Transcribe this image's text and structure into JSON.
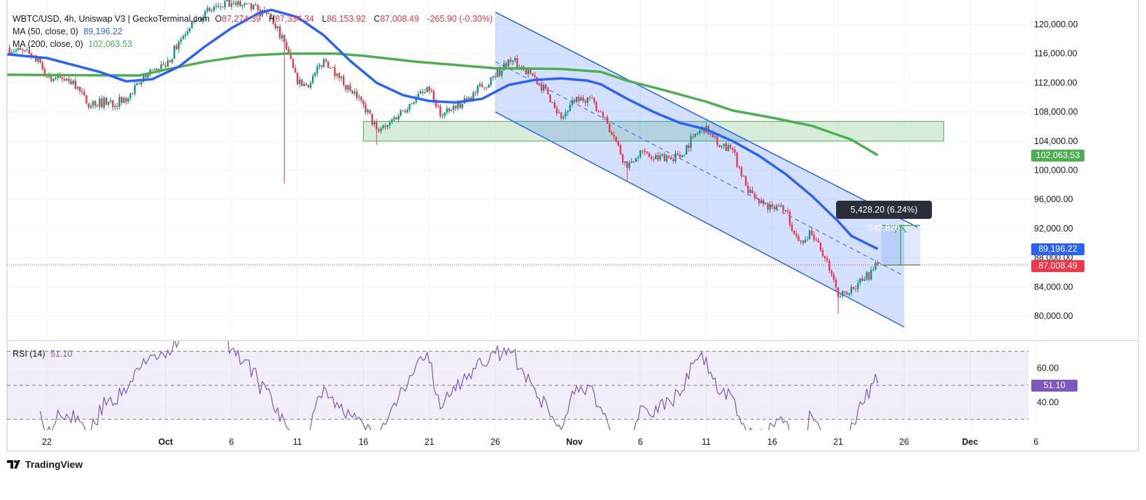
{
  "header": {
    "symbol": "WBTC/USD, 4h, Uniswap V3 | GeckoTerminal.com",
    "open_label": "O",
    "open": "87,274.39",
    "high_label": "H",
    "high": "87,334.34",
    "low_label": "L",
    "low": "86,153.92",
    "close_label": "C",
    "close": "87,008.49",
    "change": "-265.90 (-0.30%)"
  },
  "indicators": {
    "ma50": {
      "label": "MA (50, close, 0)",
      "value": "89,196.22",
      "color": "#2962ff"
    },
    "ma200": {
      "label": "MA (200, close, 0)",
      "value": "102,063.53",
      "color": "#4caf50"
    },
    "rsi": {
      "label": "RSI (14)",
      "value": "51.10",
      "color": "#7e57c2"
    }
  },
  "price_badges": {
    "ma200": "102,063.53",
    "ma50": "89,196.22",
    "last": "87,008.49"
  },
  "measure": {
    "label": "5,428.20 (6.24%) 542,820"
  },
  "footer": {
    "logo_text": "TradingView"
  },
  "colors": {
    "up": "#089981",
    "down": "#f23645",
    "ma50": "#2962ff",
    "ma200": "#4caf50",
    "rsi": "#7e57c2",
    "channel": "#2962ff",
    "zone": "#4caf50"
  },
  "chart_data": {
    "type": "candlestick",
    "interval": "4h",
    "y_axis": {
      "ticks": [
        "120,000.00",
        "116,000.00",
        "112,000.00",
        "108,000.00",
        "104,000.00",
        "100,000.00",
        "96,000.00",
        "92,000.00",
        "88,000.00",
        "84,000.00",
        "80,000.00"
      ],
      "range": [
        77000,
        123500
      ]
    },
    "x_axis": {
      "ticks": [
        {
          "date": "2025-09-22",
          "label": "22"
        },
        {
          "date": "2025-10-01",
          "label": "Oct",
          "bold": true
        },
        {
          "date": "2025-10-06",
          "label": "6"
        },
        {
          "date": "2025-10-11",
          "label": "11"
        },
        {
          "date": "2025-10-16",
          "label": "16"
        },
        {
          "date": "2025-10-21",
          "label": "21"
        },
        {
          "date": "2025-10-26",
          "label": "26"
        },
        {
          "date": "2025-11-01",
          "label": "Nov",
          "bold": true
        },
        {
          "date": "2025-11-06",
          "label": "6"
        },
        {
          "date": "2025-11-11",
          "label": "11"
        },
        {
          "date": "2025-11-16",
          "label": "16"
        },
        {
          "date": "2025-11-21",
          "label": "21"
        },
        {
          "date": "2025-11-26",
          "label": "26"
        },
        {
          "date": "2025-12-01",
          "label": "Dec",
          "bold": true
        },
        {
          "date": "2025-12-06",
          "label": "6"
        }
      ]
    },
    "close_path": [
      [
        "2025-09-19",
        116800
      ],
      [
        "2025-09-21",
        115700
      ],
      [
        "2025-09-22",
        112800
      ],
      [
        "2025-09-24",
        112300
      ],
      [
        "2025-09-25",
        109200
      ],
      [
        "2025-09-28",
        109400
      ],
      [
        "2025-09-29",
        111800
      ],
      [
        "2025-09-30",
        113800
      ],
      [
        "2025-10-01",
        114200
      ],
      [
        "2025-10-02",
        117600
      ],
      [
        "2025-10-03",
        120500
      ],
      [
        "2025-10-05",
        122400
      ],
      [
        "2025-10-06",
        122900
      ],
      [
        "2025-10-08",
        122000
      ],
      [
        "2025-10-09",
        121000
      ],
      [
        "2025-10-10",
        117600
      ],
      [
        "2025-10-11",
        111800
      ],
      [
        "2025-10-12",
        112000
      ],
      [
        "2025-10-13",
        115200
      ],
      [
        "2025-10-14",
        113300
      ],
      [
        "2025-10-15",
        110900
      ],
      [
        "2025-10-16",
        109000
      ],
      [
        "2025-10-17",
        105600
      ],
      [
        "2025-10-18",
        106600
      ],
      [
        "2025-10-20",
        110000
      ],
      [
        "2025-10-21",
        110900
      ],
      [
        "2025-10-22",
        107500
      ],
      [
        "2025-10-23",
        108500
      ],
      [
        "2025-10-24",
        110000
      ],
      [
        "2025-10-25",
        111400
      ],
      [
        "2025-10-26",
        112800
      ],
      [
        "2025-10-27",
        115200
      ],
      [
        "2025-10-28",
        114200
      ],
      [
        "2025-10-29",
        112800
      ],
      [
        "2025-10-30",
        110400
      ],
      [
        "2025-10-31",
        107100
      ],
      [
        "2025-11-01",
        109400
      ],
      [
        "2025-11-02",
        110000
      ],
      [
        "2025-11-03",
        108000
      ],
      [
        "2025-11-04",
        104600
      ],
      [
        "2025-11-05",
        100300
      ],
      [
        "2025-11-06",
        102700
      ],
      [
        "2025-11-07",
        101500
      ],
      [
        "2025-11-08",
        102000
      ],
      [
        "2025-11-09",
        101800
      ],
      [
        "2025-11-10",
        104600
      ],
      [
        "2025-11-11",
        106100
      ],
      [
        "2025-11-12",
        103200
      ],
      [
        "2025-11-13",
        102800
      ],
      [
        "2025-11-14",
        97900
      ],
      [
        "2025-11-15",
        95500
      ],
      [
        "2025-11-16",
        95000
      ],
      [
        "2025-11-17",
        94500
      ],
      [
        "2025-11-18",
        90300
      ],
      [
        "2025-11-19",
        91200
      ],
      [
        "2025-11-20",
        87900
      ],
      [
        "2025-11-21",
        82600
      ],
      [
        "2025-11-22",
        84000
      ],
      [
        "2025-11-23",
        85000
      ],
      [
        "2025-11-24",
        87008.49
      ]
    ],
    "notable_lows": [
      [
        "2025-10-10",
        98200
      ],
      [
        "2025-10-17",
        103500
      ],
      [
        "2025-11-05",
        98500
      ],
      [
        "2025-11-21",
        80300
      ]
    ],
    "ma50": [
      [
        "2025-09-19",
        115900
      ],
      [
        "2025-09-22",
        115400
      ],
      [
        "2025-09-26",
        113500
      ],
      [
        "2025-09-28",
        112200
      ],
      [
        "2025-09-30",
        112500
      ],
      [
        "2025-10-02",
        114200
      ],
      [
        "2025-10-04",
        117000
      ],
      [
        "2025-10-06",
        119500
      ],
      [
        "2025-10-08",
        121500
      ],
      [
        "2025-10-09",
        122000
      ],
      [
        "2025-10-11",
        121000
      ],
      [
        "2025-10-13",
        118500
      ],
      [
        "2025-10-15",
        115000
      ],
      [
        "2025-10-17",
        112000
      ],
      [
        "2025-10-19",
        110300
      ],
      [
        "2025-10-21",
        109500
      ],
      [
        "2025-10-23",
        109300
      ],
      [
        "2025-10-25",
        109800
      ],
      [
        "2025-10-27",
        111700
      ],
      [
        "2025-10-29",
        112400
      ],
      [
        "2025-10-31",
        112600
      ],
      [
        "2025-11-02",
        112300
      ],
      [
        "2025-11-03",
        111800
      ],
      [
        "2025-11-05",
        109800
      ],
      [
        "2025-11-07",
        108000
      ],
      [
        "2025-11-09",
        106500
      ],
      [
        "2025-11-11",
        105600
      ],
      [
        "2025-11-13",
        104000
      ],
      [
        "2025-11-15",
        102000
      ],
      [
        "2025-11-17",
        99500
      ],
      [
        "2025-11-19",
        96500
      ],
      [
        "2025-11-21",
        93000
      ],
      [
        "2025-11-22",
        91000
      ],
      [
        "2025-11-24",
        89196.22
      ]
    ],
    "ma200": [
      [
        "2025-09-19",
        113100
      ],
      [
        "2025-09-29",
        113000
      ],
      [
        "2025-10-01",
        113800
      ],
      [
        "2025-10-04",
        114900
      ],
      [
        "2025-10-07",
        115700
      ],
      [
        "2025-10-10",
        116000
      ],
      [
        "2025-10-14",
        116000
      ],
      [
        "2025-10-16",
        115700
      ],
      [
        "2025-10-20",
        114900
      ],
      [
        "2025-10-26",
        114000
      ],
      [
        "2025-10-31",
        113900
      ],
      [
        "2025-11-03",
        113500
      ],
      [
        "2025-11-05",
        112300
      ],
      [
        "2025-11-08",
        110900
      ],
      [
        "2025-11-11",
        109400
      ],
      [
        "2025-11-13",
        108200
      ],
      [
        "2025-11-16",
        107200
      ],
      [
        "2025-11-19",
        106100
      ],
      [
        "2025-11-22",
        104200
      ],
      [
        "2025-11-24",
        102063.53
      ]
    ],
    "channel": {
      "upper": [
        [
          "2025-10-26",
          121700
        ],
        [
          "2025-11-27",
          92200
        ]
      ],
      "middle": [
        [
          "2025-10-26",
          114900
        ],
        [
          "2025-11-26",
          85500
        ]
      ],
      "lower": [
        [
          "2025-10-26",
          108000
        ],
        [
          "2025-11-26",
          78500
        ]
      ]
    },
    "support_zone": {
      "from": "2025-10-16",
      "to": "2025-11-29",
      "low": 104000,
      "high": 106700
    },
    "measure_range": {
      "from": "2025-11-24",
      "to": "2025-11-27",
      "start_price": 87008.49,
      "end_price": 92436.69
    },
    "last_price": 87008.49,
    "rsi": {
      "period": 14,
      "upper_band": 70,
      "middle_band": 50,
      "lower_band": 30,
      "ticks": [
        "60.00",
        "40.00"
      ],
      "last": 51.1
    }
  }
}
